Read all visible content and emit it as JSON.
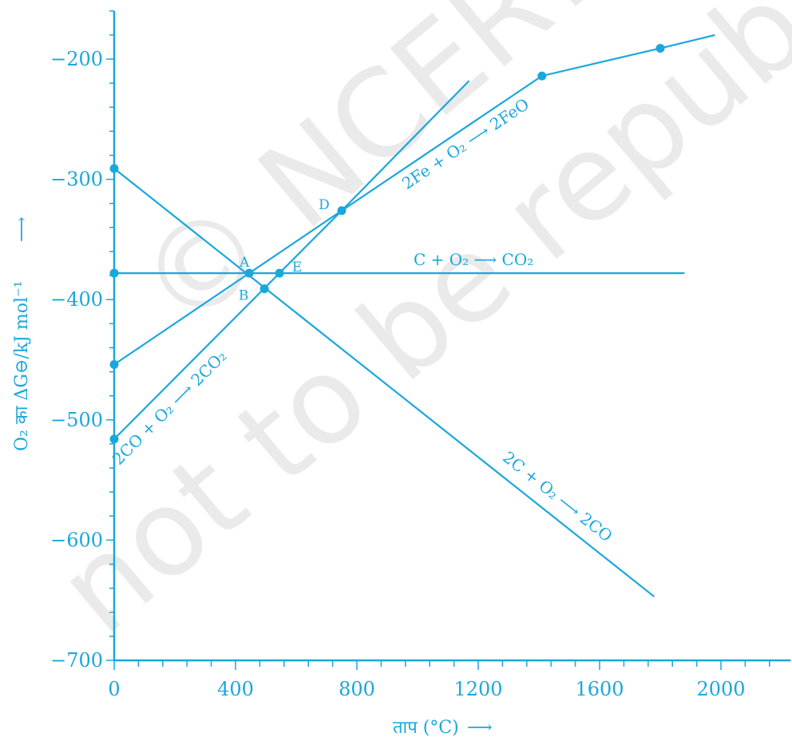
{
  "chart_data": {
    "type": "line",
    "xlabel": "ताप (°C)",
    "xlabel_arrow": "⟶",
    "ylabel": "O₂ का ΔG⊖/kJ mol⁻¹",
    "ylabel_arrow": "⟶",
    "xlim": [
      0,
      2230
    ],
    "ylim": [
      -700,
      -160
    ],
    "x_ticks": [
      0,
      400,
      800,
      1200,
      1600,
      2000
    ],
    "y_ticks": [
      -200,
      -300,
      -400,
      -500,
      -600,
      -700
    ],
    "series": [
      {
        "name": "C + O₂ ⟶ CO₂",
        "points": [
          [
            0,
            -378
          ],
          [
            1880,
            -378
          ]
        ]
      },
      {
        "name": "2C + O₂ ⟶ 2CO",
        "points": [
          [
            0,
            -291
          ],
          [
            1780,
            -647
          ]
        ]
      },
      {
        "name": "2CO + O₂ ⟶ 2CO₂",
        "points": [
          [
            0,
            -516
          ],
          [
            750,
            -326
          ],
          [
            1170,
            -218
          ]
        ]
      },
      {
        "name": "2Fe + O₂ ⟶ 2FeO",
        "points": [
          [
            0,
            -454
          ],
          [
            750,
            -326
          ],
          [
            1410,
            -214
          ],
          [
            1800,
            -191
          ],
          [
            1980,
            -180
          ]
        ]
      }
    ],
    "markers": [
      [
        0,
        -291
      ],
      [
        0,
        -378
      ],
      [
        0,
        -454
      ],
      [
        0,
        -516
      ],
      [
        445,
        -378
      ],
      [
        495,
        -391
      ],
      [
        545,
        -378
      ],
      [
        750,
        -326
      ],
      [
        1410,
        -214
      ],
      [
        1800,
        -191
      ]
    ],
    "point_labels": [
      {
        "text": "A",
        "x": 445,
        "y": -378
      },
      {
        "text": "B",
        "x": 495,
        "y": -391
      },
      {
        "text": "E",
        "x": 545,
        "y": -378
      },
      {
        "text": "D",
        "x": 750,
        "y": -326
      }
    ],
    "reaction_labels": [
      {
        "text": "C + O₂ ⟶ CO₂",
        "series": 0
      },
      {
        "text": "2C + O₂ ⟶ 2CO",
        "series": 1
      },
      {
        "text": "2CO + O₂ ⟶ 2CO₂",
        "series": 2
      },
      {
        "text": "2Fe + O₂ ⟶ 2FeO",
        "series": 3
      }
    ],
    "color": "#1aa7de",
    "grid": false
  },
  "watermark": [
    "© NCERT",
    "not to be republished"
  ]
}
